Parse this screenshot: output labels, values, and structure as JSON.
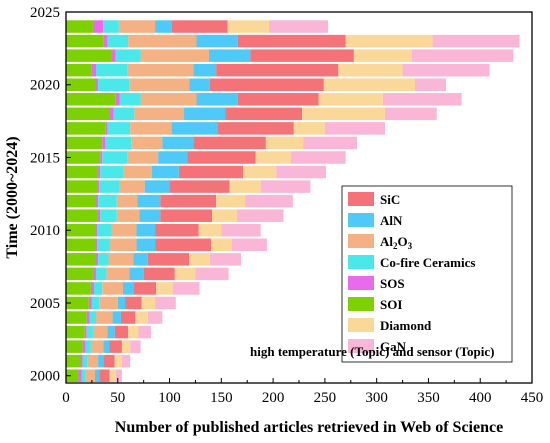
{
  "chart_data": {
    "type": "bar",
    "orientation": "horizontal",
    "stacked": true,
    "xlabel": "Number of published articles retrieved in Web of Science",
    "ylabel": "Time (2000~2024)",
    "xlim": [
      0,
      450
    ],
    "ylim": [
      1999.5,
      2025
    ],
    "xticks": [
      0,
      50,
      100,
      150,
      200,
      250,
      300,
      350,
      400,
      450
    ],
    "yticks": [
      2000,
      2005,
      2010,
      2015,
      2020,
      2025
    ],
    "grid": false,
    "legend_position": "center-right",
    "annotation": "high temperature (Topic)  and sensor (Topic)",
    "categories": [
      2000,
      2001,
      2002,
      2003,
      2004,
      2005,
      2006,
      2007,
      2008,
      2009,
      2010,
      2011,
      2012,
      2013,
      2014,
      2015,
      2016,
      2017,
      2018,
      2019,
      2020,
      2021,
      2022,
      2023,
      2024
    ],
    "series": [
      {
        "name": "SOI",
        "color": "#7ED100",
        "values": [
          12,
          14,
          16,
          18,
          20,
          22,
          24,
          26,
          28,
          28,
          28,
          30,
          28,
          30,
          30,
          33,
          35,
          38,
          42,
          48,
          28,
          25,
          44,
          36,
          26
        ]
      },
      {
        "name": "SOS",
        "color": "#E96BEB",
        "values": [
          3,
          2,
          3,
          2,
          3,
          3,
          3,
          3,
          3,
          2,
          2,
          3,
          3,
          2,
          3,
          2,
          3,
          2,
          4,
          4,
          3,
          4,
          4,
          4,
          10
        ]
      },
      {
        "name": "Co-fire Ceramics",
        "color": "#4AE8E8",
        "values": [
          4,
          5,
          5,
          6,
          6,
          7,
          8,
          10,
          10,
          12,
          14,
          16,
          18,
          20,
          22,
          24,
          25,
          22,
          20,
          20,
          30,
          30,
          24,
          20,
          15
        ]
      },
      {
        "name": "Al2O3",
        "color": "#F4B183",
        "values": [
          9,
          10,
          12,
          14,
          16,
          18,
          20,
          22,
          24,
          26,
          24,
          22,
          20,
          24,
          28,
          30,
          30,
          40,
          48,
          54,
          58,
          64,
          66,
          66,
          35
        ]
      },
      {
        "name": "AlN",
        "color": "#4FC9F8",
        "values": [
          4,
          5,
          6,
          7,
          8,
          7,
          10,
          14,
          14,
          18,
          18,
          20,
          22,
          24,
          26,
          28,
          30,
          44,
          40,
          40,
          20,
          22,
          40,
          40,
          16
        ]
      },
      {
        "name": "SiC",
        "color": "#F47378",
        "values": [
          10,
          11,
          12,
          13,
          14,
          16,
          22,
          30,
          40,
          54,
          42,
          50,
          54,
          58,
          62,
          66,
          70,
          74,
          74,
          78,
          110,
          118,
          100,
          104,
          54
        ]
      },
      {
        "name": "Diamond",
        "color": "#FAD89A",
        "values": [
          6,
          7,
          8,
          10,
          12,
          13,
          16,
          20,
          20,
          20,
          22,
          24,
          28,
          30,
          32,
          34,
          36,
          30,
          80,
          62,
          88,
          62,
          56,
          84,
          40
        ]
      },
      {
        "name": "GaN",
        "color": "#FAB6D6",
        "values": [
          6,
          8,
          10,
          12,
          14,
          20,
          26,
          32,
          30,
          34,
          38,
          45,
          46,
          48,
          48,
          53,
          52,
          58,
          50,
          76,
          30,
          84,
          98,
          84,
          57
        ]
      }
    ],
    "legend_order": [
      "SiC",
      "AlN",
      "Al2O3",
      "Co-fire Ceramics",
      "SOS",
      "SOI",
      "Diamond",
      "GaN"
    ],
    "legend_labels": {
      "SiC": [
        "SiC"
      ],
      "AlN": [
        "AlN"
      ],
      "Al2O3": [
        "Al",
        "2",
        "O",
        "3"
      ],
      "Co-fire Ceramics": [
        "Co-fire Ceramics"
      ],
      "SOS": [
        "SOS"
      ],
      "SOI": [
        "SOI"
      ],
      "Diamond": [
        "Diamond"
      ],
      "GaN": [
        "GaN"
      ]
    }
  }
}
